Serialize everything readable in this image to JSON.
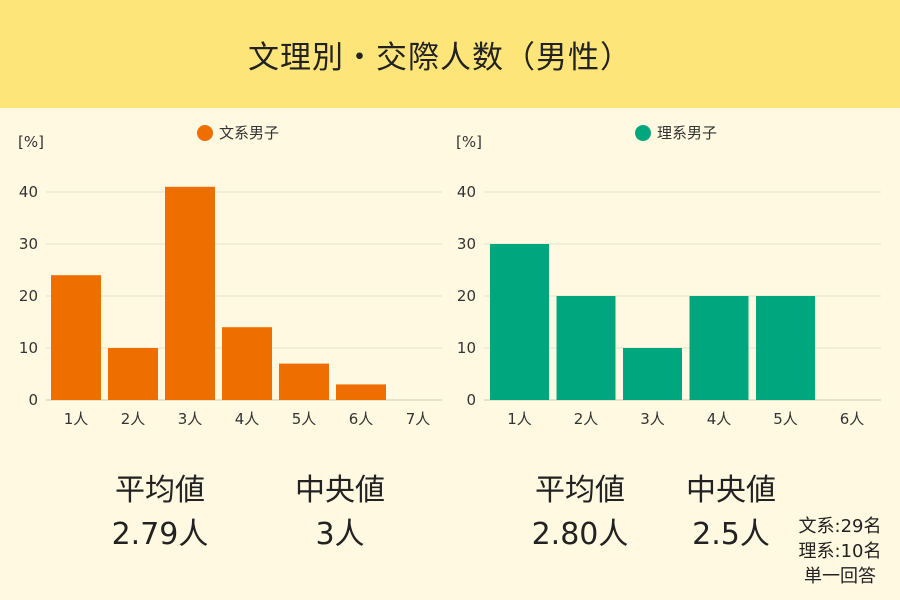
{
  "header": {
    "title": "文理別・交際人数（男性）"
  },
  "chart_data": [
    {
      "type": "bar",
      "ylabel": "[%]",
      "legend": {
        "label": "文系男子",
        "position": "top"
      },
      "color": "#ee6e00",
      "categories": [
        "1人",
        "2人",
        "3人",
        "4人",
        "5人",
        "6人",
        "7人"
      ],
      "values": [
        24,
        10,
        41,
        14,
        7,
        3,
        0
      ],
      "ylim": [
        0,
        40
      ],
      "yticks": [
        0,
        10,
        20,
        30,
        40
      ],
      "grid": true
    },
    {
      "type": "bar",
      "ylabel": "[%]",
      "legend": {
        "label": "理系男子",
        "position": "top"
      },
      "color": "#00a67e",
      "categories": [
        "1人",
        "2人",
        "3人",
        "4人",
        "5人",
        "6人"
      ],
      "values": [
        30,
        20,
        10,
        20,
        20,
        0
      ],
      "ylim": [
        0,
        40
      ],
      "yticks": [
        0,
        10,
        20,
        30,
        40
      ],
      "grid": true
    }
  ],
  "stats": {
    "left": {
      "mean_label": "平均値",
      "mean_value": "2.79人",
      "median_label": "中央値",
      "median_value": "3人"
    },
    "right": {
      "mean_label": "平均値",
      "mean_value": "2.80人",
      "median_label": "中央値",
      "median_value": "2.5人"
    }
  },
  "note": {
    "line1": "文系:29名",
    "line2": "理系:10名",
    "line3": "単一回答"
  }
}
